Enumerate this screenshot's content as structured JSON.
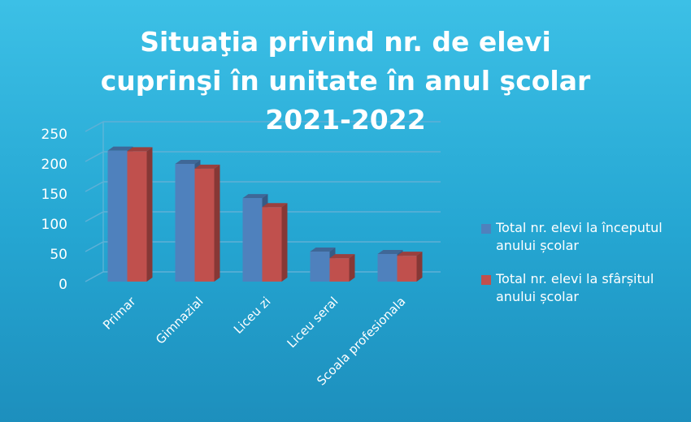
{
  "chart_data": {
    "type": "bar3d",
    "title": "Situaţia privind nr. de elevi cuprinşi în unitate în anul şcolar 2021-2022",
    "categories": [
      "Primar",
      "Gimnazial",
      "Liceu zi",
      "Liceu seral",
      "Scoala profesionala"
    ],
    "series": [
      {
        "name": "Total nr. elevi la începutul anului școlar",
        "color": "#4f81bd",
        "values": [
          218,
          196,
          139,
          50,
          46
        ]
      },
      {
        "name": "Total nr. elevi la sfârșitul anului școlar",
        "color": "#c0504d",
        "values": [
          217,
          188,
          124,
          39,
          43
        ]
      }
    ],
    "ylim": [
      0,
      250
    ],
    "yticks": [
      0,
      50,
      100,
      150,
      200,
      250
    ],
    "grid": true,
    "legend": "right"
  }
}
